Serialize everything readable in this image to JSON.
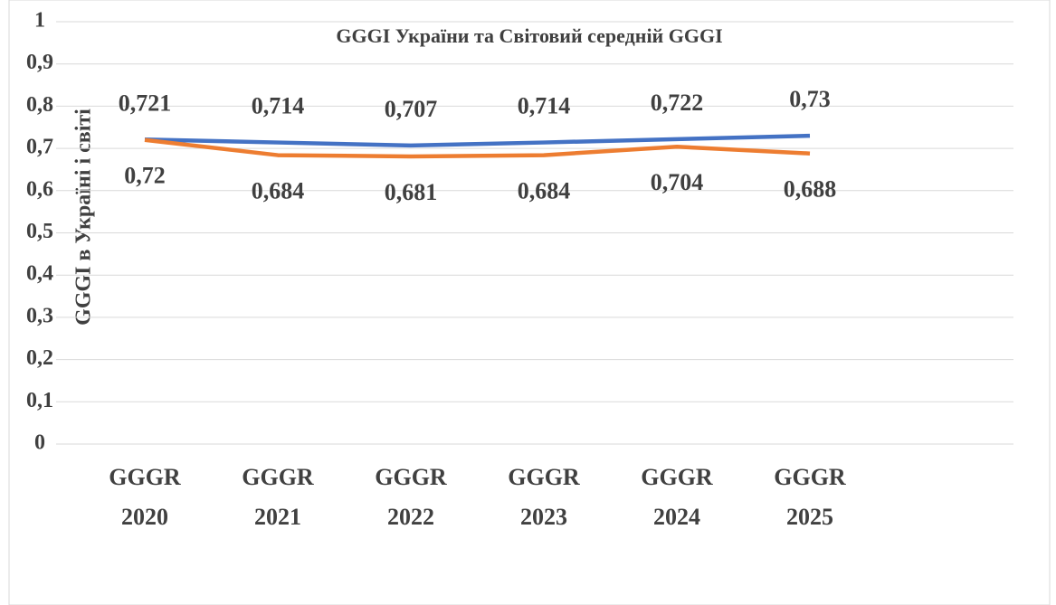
{
  "chart_data": {
    "type": "line",
    "title": "GGGI України та Світовий середній GGGI",
    "y_label": "GGGI в Україні і світі",
    "categories": [
      "GGGR 2020",
      "GGGR 2021",
      "GGGR 2022",
      "GGGR 2023",
      "GGGR 2024",
      "GGGR 2025"
    ],
    "series": [
      {
        "color": "#4472c4",
        "values": [
          0.721,
          0.714,
          0.707,
          0.714,
          0.722,
          0.73
        ],
        "value_labels": [
          "0,721",
          "0,714",
          "0,707",
          "0,714",
          "0,722",
          "0,73"
        ]
      },
      {
        "color": "#ed7d31",
        "values": [
          0.72,
          0.684,
          0.681,
          0.684,
          0.704,
          0.688
        ],
        "value_labels": [
          "0,72",
          "0,684",
          "0,681",
          "0,684",
          "0,704",
          "0,688"
        ]
      }
    ],
    "ylim": [
      0,
      1
    ],
    "yticks": [
      0,
      {
        "value": 0.1,
        "label": "0,1"
      },
      {
        "value": 0.2,
        "label": "0,2"
      },
      {
        "value": 0.3,
        "label": "0,3"
      },
      {
        "value": 0.4,
        "label": "0,4"
      },
      {
        "value": 0.5,
        "label": "0,5"
      },
      {
        "value": 0.6,
        "label": "0,6"
      },
      {
        "value": 0.7,
        "label": "0,7"
      },
      {
        "value": 0.8,
        "label": "0,8"
      },
      {
        "value": 0.9,
        "label": "0,9"
      },
      1
    ],
    "grid": true
  }
}
